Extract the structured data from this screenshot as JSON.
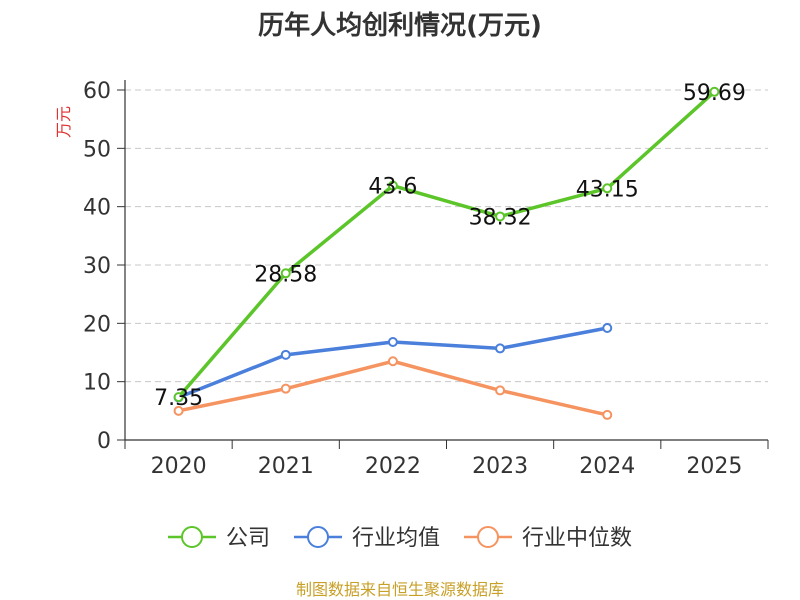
{
  "chart_data": {
    "type": "line",
    "title": "历年人均创利情况(万元)",
    "ylabel": "万元",
    "xlabel": "",
    "categories": [
      "2020",
      "2021",
      "2022",
      "2023",
      "2024",
      "2025"
    ],
    "ylim": [
      0,
      60
    ],
    "yticks": [
      0,
      10,
      20,
      30,
      40,
      50,
      60
    ],
    "grid": true,
    "legend_position": "bottom",
    "series": [
      {
        "name": "公司",
        "color": "#5cc52a",
        "values": [
          7.35,
          28.58,
          43.6,
          38.32,
          43.15,
          59.69
        ],
        "labels": [
          "7.35",
          "28.58",
          "43.6",
          "38.32",
          "43.15",
          "59.69"
        ],
        "show_labels": true
      },
      {
        "name": "行业均值",
        "color": "#4a7fdb",
        "values": [
          7.3,
          14.6,
          16.8,
          15.7,
          19.2,
          null
        ],
        "show_labels": false
      },
      {
        "name": "行业中位数",
        "color": "#f59460",
        "values": [
          5.0,
          8.8,
          13.5,
          8.5,
          4.3,
          null
        ],
        "show_labels": false
      }
    ]
  },
  "source": "制图数据来自恒生聚源数据库"
}
